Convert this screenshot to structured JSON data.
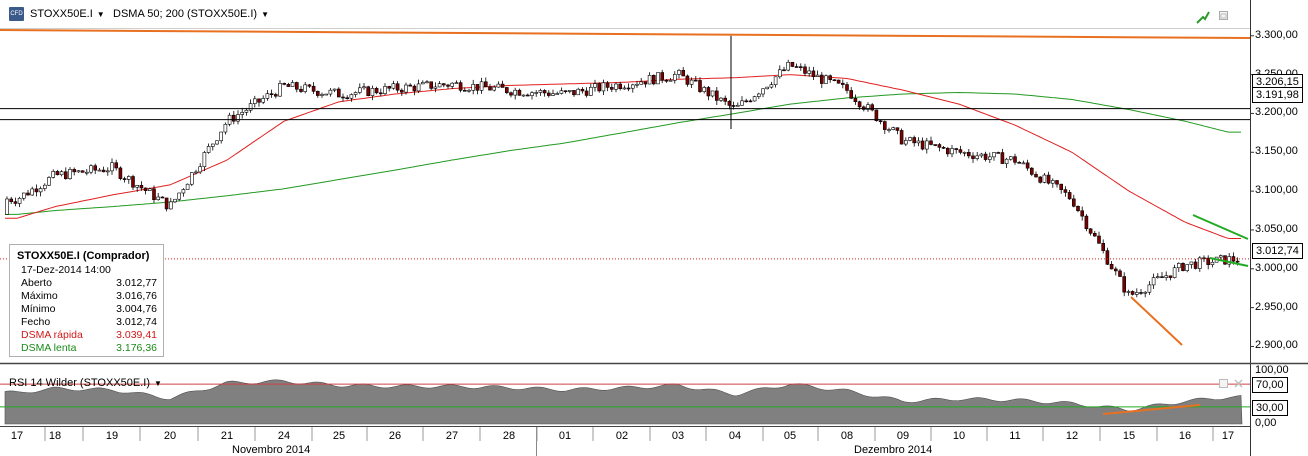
{
  "toolbar": {
    "logo": "CFD",
    "symbol": "STOXX50E.I",
    "indicator": "DSMA 50; 200 (STOXX50E.I)"
  },
  "info": {
    "title": "STOXX50E.I (Comprador)",
    "datetime": "17-Dez-2014 14:00",
    "rows": [
      {
        "label": "Aberto",
        "value": "3.012,77"
      },
      {
        "label": "Máximo",
        "value": "3.016,76"
      },
      {
        "label": "Mínimo",
        "value": "3.004,76"
      },
      {
        "label": "Fecho",
        "value": "3.012,74"
      },
      {
        "label": "DSMA rápida",
        "value": "3.039,41"
      },
      {
        "label": "DSMA lenta",
        "value": "3.176,36"
      }
    ]
  },
  "rsi": {
    "label": "RSI 14 Wilder (STOXX50E.I)",
    "overbought": "70,00",
    "oversold": "30,00",
    "axis": [
      "100,00",
      "0,00"
    ]
  },
  "price_axis": {
    "ticks": [
      "3.300,00",
      "3.250,00",
      "3.200,00",
      "3.150,00",
      "3.100,00",
      "3.050,00",
      "3.000,00",
      "2.950,00",
      "2.900,00"
    ],
    "tags": {
      "upper_line": "3.206,15",
      "lower_line": "3.191,98",
      "last": "3.012,74"
    }
  },
  "x_axis": {
    "days": [
      "17",
      "18",
      "19",
      "20",
      "21",
      "24",
      "25",
      "26",
      "27",
      "28",
      "01",
      "02",
      "03",
      "04",
      "05",
      "08",
      "09",
      "10",
      "11",
      "12",
      "15",
      "16",
      "17"
    ],
    "months": [
      "Novembro 2014",
      "Dezembro 2014"
    ]
  },
  "colors": {
    "fast_ma": "#e02020",
    "slow_ma": "#229922",
    "trendline": "#e87020",
    "channel": "#22aa22",
    "candle_up": "#ffffff",
    "candle_down": "#7a0000",
    "rsi_fill": "#808080",
    "rsi_overbought": "#d04040",
    "rsi_oversold": "#22aa22"
  },
  "chart_data": {
    "type": "candlestick",
    "instrument": "STOXX50E.I",
    "ylim": [
      2880,
      3310
    ],
    "x": [
      "17",
      "18",
      "19",
      "20",
      "21",
      "24",
      "25",
      "26",
      "27",
      "28",
      "01",
      "02",
      "03",
      "04",
      "05",
      "08",
      "09",
      "10",
      "11",
      "12",
      "15",
      "16",
      "17"
    ],
    "close": [
      3090,
      3120,
      3130,
      3080,
      3190,
      3235,
      3225,
      3232,
      3238,
      3230,
      3225,
      3238,
      3250,
      3205,
      3262,
      3230,
      3165,
      3150,
      3140,
      3090,
      2965,
      3005,
      3012
    ],
    "series": [
      {
        "name": "DSMA rápida",
        "values": [
          3065,
          3080,
          3095,
          3108,
          3140,
          3190,
          3215,
          3225,
          3232,
          3236,
          3238,
          3240,
          3244,
          3246,
          3250,
          3245,
          3230,
          3212,
          3185,
          3150,
          3100,
          3060,
          3039
        ]
      },
      {
        "name": "DSMA lenta",
        "values": [
          3070,
          3075,
          3080,
          3086,
          3094,
          3103,
          3115,
          3127,
          3140,
          3152,
          3162,
          3175,
          3188,
          3200,
          3212,
          3220,
          3225,
          3227,
          3225,
          3218,
          3205,
          3190,
          3176
        ]
      }
    ],
    "rsi": [
      55,
      62,
      60,
      45,
      72,
      75,
      68,
      66,
      66,
      64,
      60,
      63,
      68,
      52,
      70,
      58,
      40,
      44,
      42,
      36,
      25,
      40,
      47
    ],
    "horizontal_lines": [
      3206.15,
      3191.98
    ],
    "last": 3012.74
  }
}
